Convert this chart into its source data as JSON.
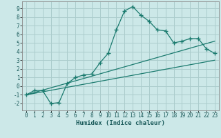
{
  "xlabel": "Humidex (Indice chaleur)",
  "ylabel": "",
  "bg_color": "#cce8e8",
  "grid_color": "#aacccc",
  "line_color": "#1a7a6e",
  "xlim": [
    -0.5,
    23.5
  ],
  "ylim": [
    -2.8,
    9.8
  ],
  "xticks": [
    0,
    1,
    2,
    3,
    4,
    5,
    6,
    7,
    8,
    9,
    10,
    11,
    12,
    13,
    14,
    15,
    16,
    17,
    18,
    19,
    20,
    21,
    22,
    23
  ],
  "yticks": [
    -2,
    -1,
    0,
    1,
    2,
    3,
    4,
    5,
    6,
    7,
    8,
    9
  ],
  "jagged_x": [
    0,
    1,
    2,
    3,
    4,
    5,
    6,
    7,
    8,
    9,
    10,
    11,
    12,
    13,
    14,
    15,
    16,
    17,
    18,
    19,
    20,
    21,
    22,
    23
  ],
  "jagged_y": [
    -1.0,
    -0.5,
    -0.5,
    -2.0,
    -1.9,
    0.3,
    1.0,
    1.3,
    1.4,
    2.7,
    3.8,
    6.5,
    8.7,
    9.2,
    8.2,
    7.5,
    6.5,
    6.4,
    5.0,
    5.2,
    5.5,
    5.5,
    4.3,
    3.8
  ],
  "line1_x": [
    0,
    23
  ],
  "line1_y": [
    -1.0,
    3.0
  ],
  "line2_x": [
    0,
    23
  ],
  "line2_y": [
    -1.0,
    5.2
  ],
  "tick_fontsize": 5.5,
  "xlabel_fontsize": 6.5
}
